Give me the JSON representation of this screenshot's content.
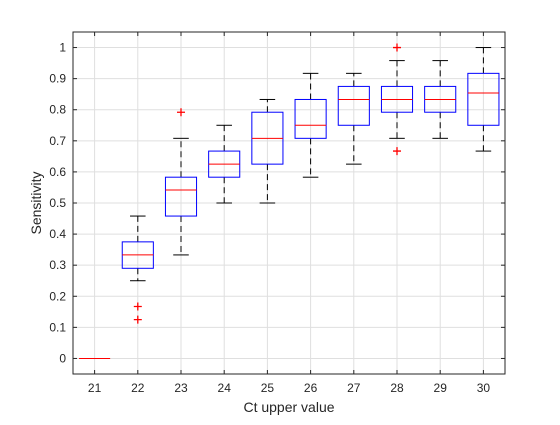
{
  "chart_data": {
    "type": "box",
    "title": "",
    "xlabel": "Ct upper value",
    "ylabel": "Sensitivity",
    "ylim": [
      -0.05,
      1.05
    ],
    "grid": true,
    "x_tick_labels": [
      "21",
      "22",
      "23",
      "24",
      "25",
      "26",
      "27",
      "28",
      "29",
      "30"
    ],
    "y_tick_labels": [
      "0",
      "0.1",
      "0.2",
      "0.3",
      "0.4",
      "0.5",
      "0.6",
      "0.7",
      "0.8",
      "0.9",
      "1"
    ],
    "y_ticks": [
      0,
      0.1,
      0.2,
      0.3,
      0.4,
      0.5,
      0.6,
      0.7,
      0.8,
      0.9,
      1
    ],
    "boxes": [
      {
        "category": "21",
        "whisker_low": 0,
        "q1": 0,
        "median": 0,
        "q3": 0,
        "whisker_high": 0,
        "outliers": []
      },
      {
        "category": "22",
        "whisker_low": 0.25,
        "q1": 0.29,
        "median": 0.333,
        "q3": 0.375,
        "whisker_high": 0.458,
        "outliers": [
          0.167,
          0.125
        ]
      },
      {
        "category": "23",
        "whisker_low": 0.333,
        "q1": 0.458,
        "median": 0.542,
        "q3": 0.583,
        "whisker_high": 0.708,
        "outliers": [
          0.792
        ]
      },
      {
        "category": "24",
        "whisker_low": 0.5,
        "q1": 0.583,
        "median": 0.625,
        "q3": 0.667,
        "whisker_high": 0.75,
        "outliers": []
      },
      {
        "category": "25",
        "whisker_low": 0.5,
        "q1": 0.625,
        "median": 0.708,
        "q3": 0.792,
        "whisker_high": 0.833,
        "outliers": []
      },
      {
        "category": "26",
        "whisker_low": 0.583,
        "q1": 0.708,
        "median": 0.75,
        "q3": 0.833,
        "whisker_high": 0.917,
        "outliers": []
      },
      {
        "category": "27",
        "whisker_low": 0.625,
        "q1": 0.75,
        "median": 0.833,
        "q3": 0.875,
        "whisker_high": 0.917,
        "outliers": []
      },
      {
        "category": "28",
        "whisker_low": 0.708,
        "q1": 0.792,
        "median": 0.833,
        "q3": 0.875,
        "whisker_high": 0.958,
        "outliers": [
          1.0,
          0.667
        ]
      },
      {
        "category": "29",
        "whisker_low": 0.708,
        "q1": 0.792,
        "median": 0.833,
        "q3": 0.875,
        "whisker_high": 0.958,
        "outliers": []
      },
      {
        "category": "30",
        "whisker_low": 0.667,
        "q1": 0.75,
        "median": 0.854,
        "q3": 0.917,
        "whisker_high": 1.0,
        "outliers": []
      }
    ],
    "colors": {
      "box": "#0000ff",
      "median": "#ff0000",
      "whisker": "#000000",
      "outlier": "#ff0000",
      "grid": "#dfdfdf",
      "axis": "#262626"
    }
  }
}
